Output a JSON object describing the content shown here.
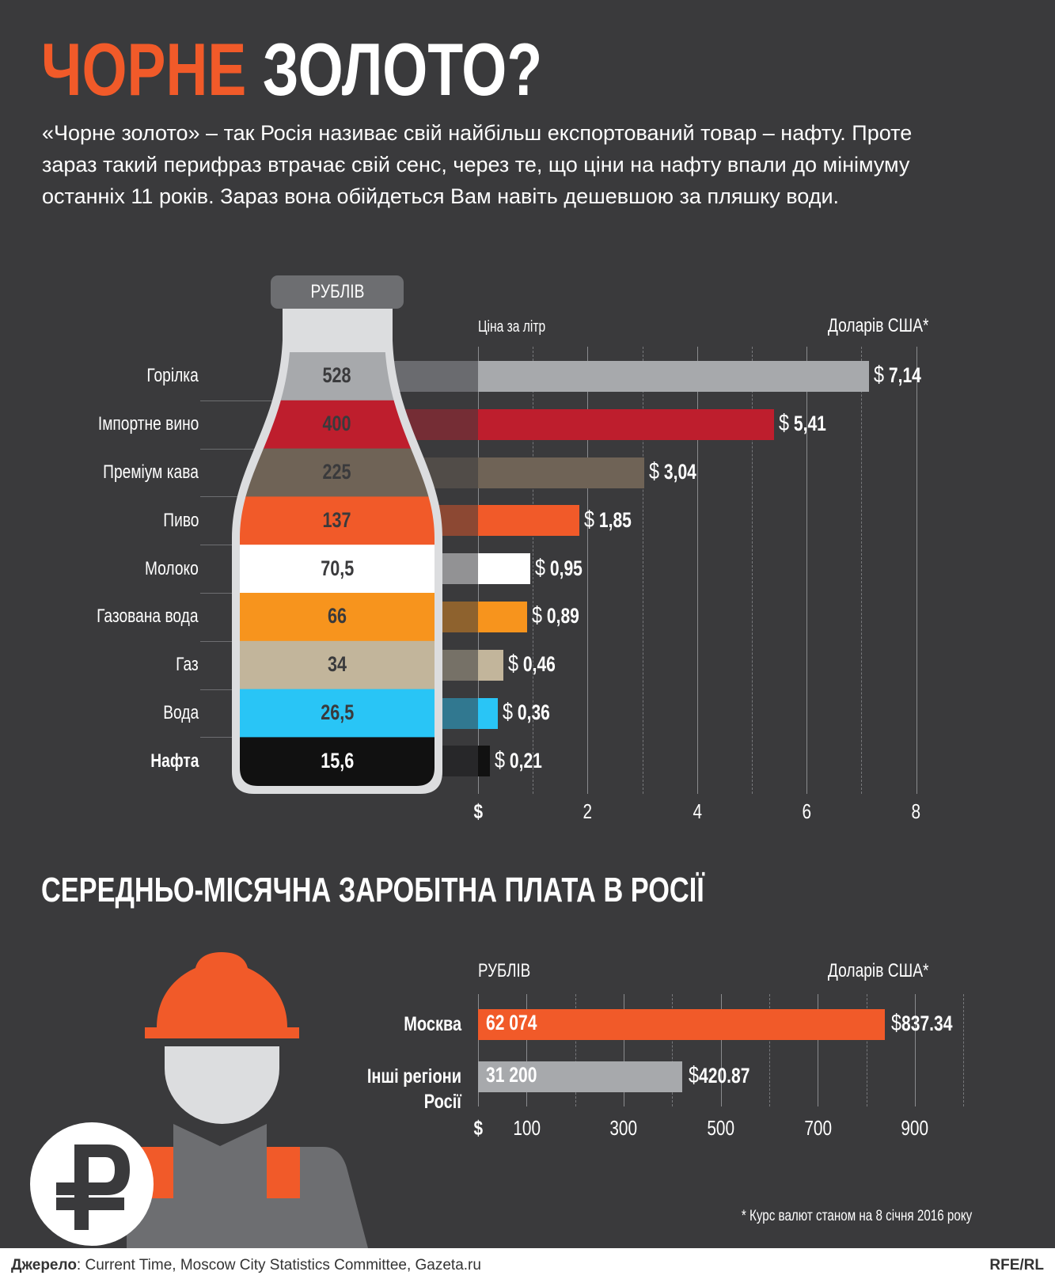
{
  "header": {
    "title_highlight": "ЧОРНЕ",
    "title_rest": "ЗОЛОТО?",
    "intro_lines": [
      "«Чорне золото» – так Росія називає свій найбільш експортований товар – нафту. Проте",
      "зараз такий перифраз втрачає свій сенс, через те, що ціни на нафту впали до мінімуму",
      "останніх 11 років. Зараз вона обійдеться Вам навіть дешевшою за пляшку води."
    ]
  },
  "colors": {
    "background": "#3a3a3c",
    "accent": "#f15a29",
    "bottle": "#dcdddf"
  },
  "chart_data": [
    {
      "type": "bar",
      "orientation": "horizontal",
      "bottle_label": "РУБЛІВ",
      "subtitle": "Ціна за літр",
      "unit_label": "Доларів США*",
      "categories": [
        "Горілка",
        "Імпортне вино",
        "Преміум кава",
        "Пиво",
        "Молоко",
        "Газована вода",
        "Газ",
        "Вода",
        "Нафта"
      ],
      "values_usd": [
        7.14,
        5.41,
        3.04,
        1.85,
        0.95,
        0.89,
        0.46,
        0.36,
        0.21
      ],
      "value_labels_usd": [
        "7,14",
        "5,41",
        "3,04",
        "1,85",
        "0,95",
        "0,89",
        "0,46",
        "0,36",
        "0,21"
      ],
      "values_rub": [
        "528",
        "400",
        "225",
        "137",
        "70,5",
        "66",
        "34",
        "26,5",
        "15,6"
      ],
      "colors": [
        "#a7a9ac",
        "#be1e2d",
        "#6f6356",
        "#f15a29",
        "#ffffff",
        "#f7941d",
        "#c2b59b",
        "#29c5f6",
        "#111111"
      ],
      "rub_text_colors": [
        "#3a3a3c",
        "#3a3a3c",
        "#3a3a3c",
        "#3a3a3c",
        "#3a3a3c",
        "#3a3a3c",
        "#3a3a3c",
        "#3a3a3c",
        "#ffffff"
      ],
      "highlight_category": "Нафта",
      "currency_symbol": "$",
      "xlim": [
        0,
        8
      ],
      "xticks": [
        "$",
        "2",
        "4",
        "6",
        "8"
      ],
      "grid": true
    },
    {
      "type": "bar",
      "orientation": "horizontal",
      "title": "СЕРЕДНЬО-МІСЯЧНА ЗАРОБІТНА ПЛАТА В РОСІЇ",
      "left_label": "РУБЛІВ",
      "unit_label": "Доларів США*",
      "categories": [
        [
          "Москва"
        ],
        [
          "Інші регіони",
          "Росії"
        ]
      ],
      "values_usd": [
        837.34,
        420.87
      ],
      "value_labels_usd": [
        "837.34",
        "420.87"
      ],
      "values_rub": [
        "62 074",
        "31 200"
      ],
      "colors": [
        "#f15a29",
        "#a7a9ac"
      ],
      "currency_symbol": "$",
      "xlim": [
        0,
        900
      ],
      "xticks": [
        "$",
        "100",
        "300",
        "500",
        "700",
        "900"
      ],
      "grid": true
    }
  ],
  "footnote": "* Курс валют станом на 8 січня 2016 року",
  "footer": {
    "source_label": "Джерело",
    "source_text": ": Current Time, Moscow City Statistics Committee, Gazeta.ru",
    "brand": "RFE/RL"
  }
}
